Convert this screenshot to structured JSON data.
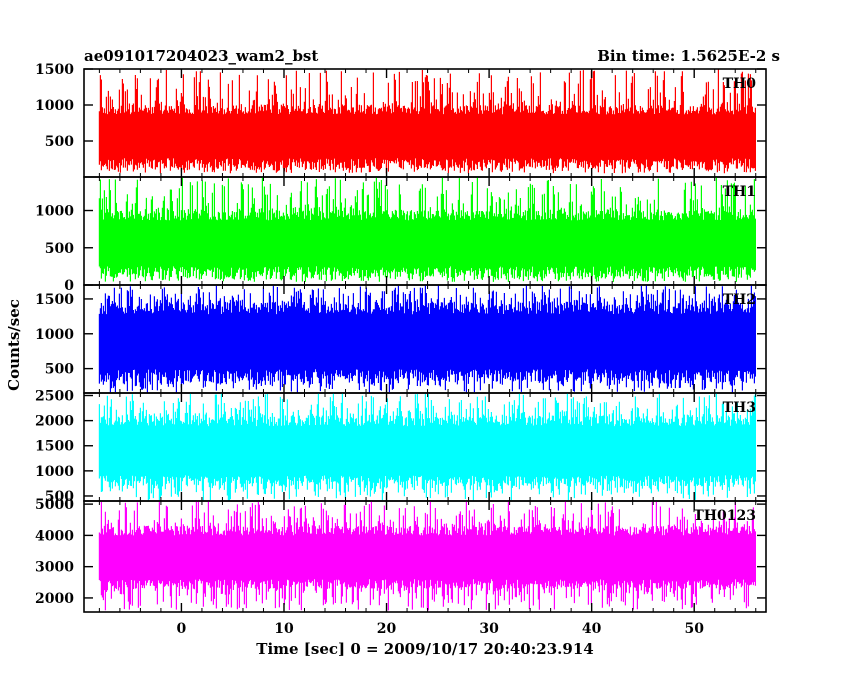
{
  "header": {
    "title": "ae091017204023_wam2_bst",
    "bin_time": "Bin time: 1.5625E-2 s"
  },
  "chart_data": {
    "type": "line",
    "title": "ae091017204023_wam2_bst",
    "xlabel": "Time [sec] 0 = 2009/10/17 20:40:23.914",
    "ylabel": "Counts/sec",
    "xlim": [
      -9.5,
      57
    ],
    "data_range": [
      -8,
      56
    ],
    "x_ticks": [
      0,
      10,
      20,
      30,
      40,
      50
    ],
    "x_tick_labels": [
      "0",
      "10",
      "20",
      "30",
      "40",
      "50"
    ],
    "panels": [
      {
        "name": "TH0",
        "color": "#ff0000",
        "ylim": [
          0,
          1500
        ],
        "y_ticks": [
          500,
          1000,
          1500
        ],
        "y_tick_labels": [
          "500",
          "1000",
          "1500"
        ],
        "band": {
          "low": 130,
          "high": 1000,
          "min": 50,
          "max": 1500
        }
      },
      {
        "name": "TH1",
        "color": "#00ff00",
        "ylim": [
          0,
          1450
        ],
        "y_ticks": [
          0,
          500,
          1000
        ],
        "y_tick_labels": [
          "0",
          "500",
          "1000"
        ],
        "band": {
          "low": 120,
          "high": 1000,
          "min": 40,
          "max": 1450
        }
      },
      {
        "name": "TH2",
        "color": "#0000ff",
        "ylim": [
          150,
          1700
        ],
        "y_ticks": [
          500,
          1000,
          1500
        ],
        "y_tick_labels": [
          "500",
          "1000",
          "1500"
        ],
        "band": {
          "low": 320,
          "high": 1450,
          "min": 150,
          "max": 1700
        }
      },
      {
        "name": "TH3",
        "color": "#00ffff",
        "ylim": [
          400,
          2550
        ],
        "y_ticks": [
          500,
          1000,
          1500,
          2000,
          2500
        ],
        "y_tick_labels": [
          "500",
          "1000",
          "1500",
          "2000",
          "2500"
        ],
        "band": {
          "low": 700,
          "high": 2100,
          "min": 400,
          "max": 2550
        }
      },
      {
        "name": "TH0123",
        "color": "#ff00ff",
        "ylim": [
          1550,
          5100
        ],
        "y_ticks": [
          2000,
          3000,
          4000,
          5000
        ],
        "y_tick_labels": [
          "2000",
          "3000",
          "4000",
          "5000"
        ],
        "band": {
          "low": 2300,
          "high": 4300,
          "min": 1600,
          "max": 5100
        }
      }
    ]
  }
}
